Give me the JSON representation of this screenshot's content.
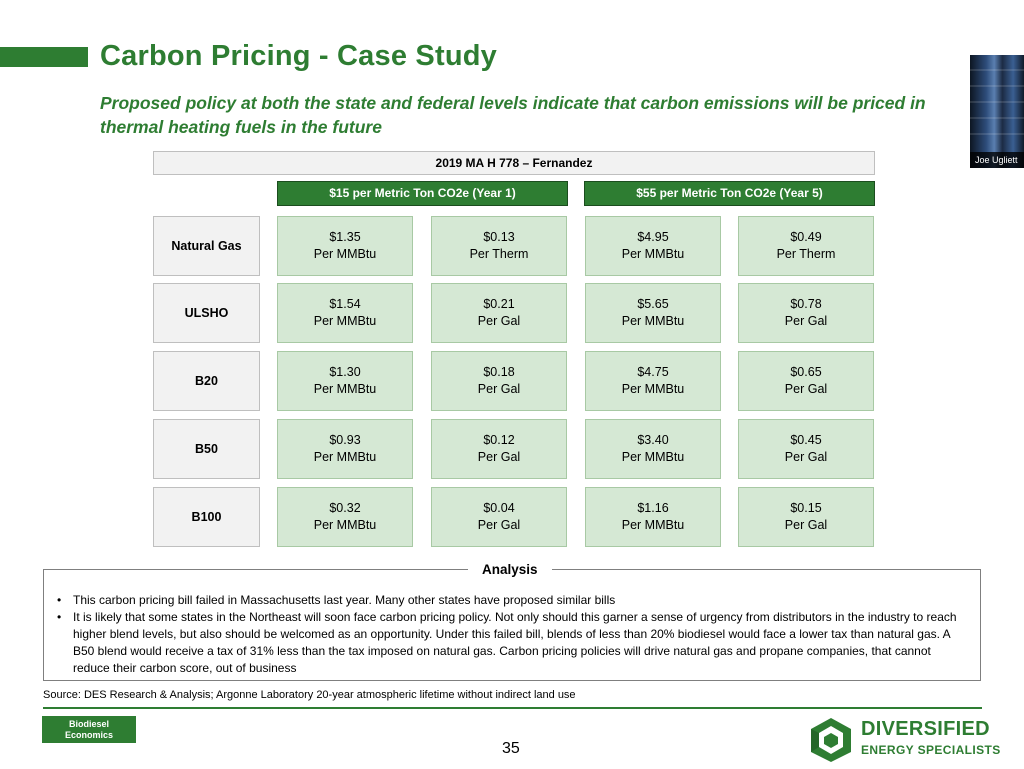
{
  "slide": {
    "title": "Carbon Pricing - Case Study",
    "subtitle_line1": "Proposed policy at both the state and federal levels indicate that carbon emissions will be priced in",
    "subtitle_line2": "thermal heating fuels in the future",
    "page_number": "35",
    "badge_line1": "Biodiesel",
    "badge_line2": "Economics",
    "logo_line1": "DIVERSIFIED",
    "logo_line2": "ENERGY SPECIALISTS"
  },
  "video": {
    "participant_name": "Joe Ugliett"
  },
  "table": {
    "bill": "2019 MA H 778 – Fernandez",
    "headers": [
      "$15 per Metric Ton CO2e (Year 1)",
      "$55 per Metric Ton CO2e (Year 5)"
    ],
    "rows": [
      {
        "fuel": "Natural Gas",
        "cells": [
          {
            "value": "$1.35",
            "unit": "Per MMBtu"
          },
          {
            "value": "$0.13",
            "unit": "Per Therm"
          },
          {
            "value": "$4.95",
            "unit": "Per MMBtu"
          },
          {
            "value": "$0.49",
            "unit": "Per Therm"
          }
        ]
      },
      {
        "fuel": "ULSHO",
        "cells": [
          {
            "value": "$1.54",
            "unit": "Per MMBtu"
          },
          {
            "value": "$0.21",
            "unit": "Per Gal"
          },
          {
            "value": "$5.65",
            "unit": "Per MMBtu"
          },
          {
            "value": "$0.78",
            "unit": "Per Gal"
          }
        ]
      },
      {
        "fuel": "B20",
        "cells": [
          {
            "value": "$1.30",
            "unit": "Per MMBtu"
          },
          {
            "value": "$0.18",
            "unit": "Per Gal"
          },
          {
            "value": "$4.75",
            "unit": "Per MMBtu"
          },
          {
            "value": "$0.65",
            "unit": "Per Gal"
          }
        ]
      },
      {
        "fuel": "B50",
        "cells": [
          {
            "value": "$0.93",
            "unit": "Per MMBtu"
          },
          {
            "value": "$0.12",
            "unit": "Per Gal"
          },
          {
            "value": "$3.40",
            "unit": "Per MMBtu"
          },
          {
            "value": "$0.45",
            "unit": "Per Gal"
          }
        ]
      },
      {
        "fuel": "B100",
        "cells": [
          {
            "value": "$0.32",
            "unit": "Per MMBtu"
          },
          {
            "value": "$0.04",
            "unit": "Per Gal"
          },
          {
            "value": "$1.16",
            "unit": "Per MMBtu"
          },
          {
            "value": "$0.15",
            "unit": "Per Gal"
          }
        ]
      }
    ]
  },
  "analysis": {
    "title": "Analysis",
    "bullets": [
      "This carbon pricing bill failed in Massachusetts last year. Many other states have proposed similar bills",
      "It is likely that some states in the Northeast will soon face carbon pricing policy. Not only should this garner a sense of urgency from distributors in the industry to reach higher blend levels, but also should be welcomed as an opportunity. Under this failed bill, blends of less than 20% biodiesel would face a lower tax than natural gas. A B50 blend would receive a tax of 31% less than the tax imposed on natural gas. Carbon pricing policies will drive natural gas and propane companies, that cannot reduce their carbon score, out of business"
    ]
  },
  "source": "Source: DES Research & Analysis; Argonne Laboratory 20-year atmospheric lifetime without indirect land use",
  "colors": {
    "brand_green": "#2e7d32",
    "cell_green": "#d5e8d4",
    "label_gray": "#f2f2f2"
  }
}
